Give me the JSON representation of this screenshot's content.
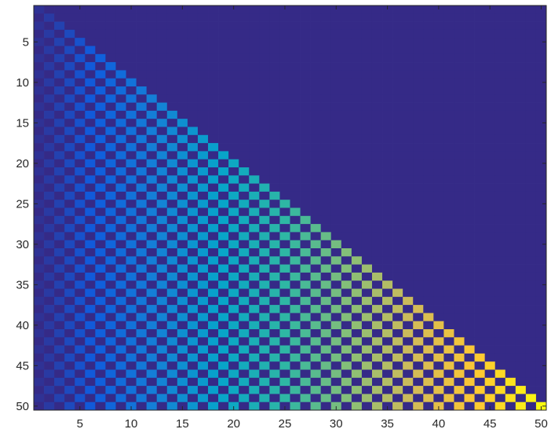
{
  "chart_data": {
    "type": "heatmap",
    "title": "",
    "xlabel": "",
    "ylabel": "",
    "rows": 50,
    "cols": 50,
    "description_of_values": "lower-triangular checkerboard matrix",
    "values_rule": {
      "nonzero_region": "column <= row",
      "nonzero_cells": "(row + column) is even",
      "nonzero_value": "column index",
      "all_other_cells": 0
    },
    "color_range": [
      0,
      50
    ],
    "colormap": "parula",
    "colormap_stops": [
      "#352a87",
      "#0f5cdd",
      "#1481d6",
      "#06a4ca",
      "#2eb7a4",
      "#87bf77",
      "#d1bb59",
      "#fec832",
      "#f9fb0e"
    ],
    "x_ticks": [
      5,
      10,
      15,
      20,
      25,
      30,
      35,
      40,
      45,
      50
    ],
    "y_ticks": [
      5,
      10,
      15,
      20,
      25,
      30,
      35,
      40,
      45,
      50
    ],
    "x_tick_labels": [
      "5",
      "10",
      "15",
      "20",
      "25",
      "30",
      "35",
      "40",
      "45",
      "50"
    ],
    "y_tick_labels": [
      "5",
      "10",
      "15",
      "20",
      "25",
      "30",
      "35",
      "40",
      "45",
      "50"
    ],
    "xlim": [
      0.5,
      50.5
    ],
    "ylim": [
      0.5,
      50.5
    ],
    "y_direction": "reverse",
    "grid": false,
    "legend": "none"
  }
}
